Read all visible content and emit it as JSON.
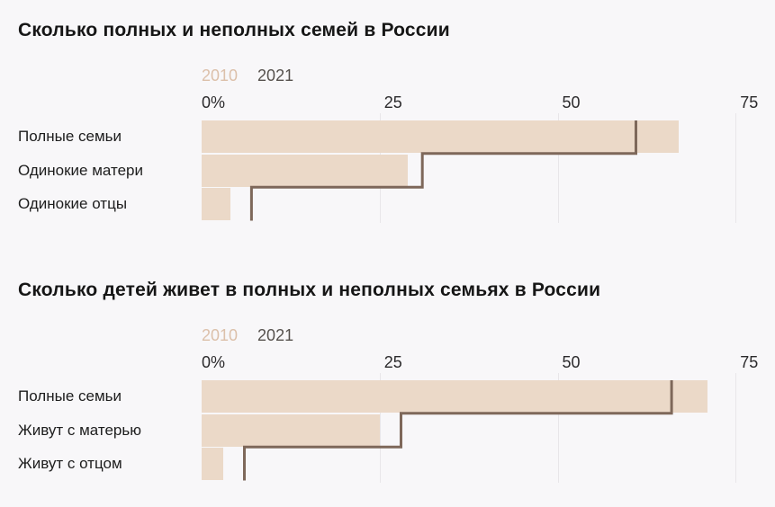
{
  "page": {
    "background_color": "#f8f7f9"
  },
  "colors": {
    "grid": "#e8e6e9",
    "title_text": "#161616",
    "category_text": "#1d1d1d",
    "axis_text": "#2b2a2c"
  },
  "chart_data": [
    {
      "type": "bar",
      "orientation": "horizontal",
      "title": "Сколько полных и неполных семей в России",
      "categories": [
        "Полные семьи",
        "Одинокие матери",
        "Одинокие отцы"
      ],
      "series": [
        {
          "name": "2010",
          "style": "filled-bar",
          "color": "#ebd9c8",
          "legend_color": "#dcc0aa",
          "values": [
            67,
            29,
            4
          ]
        },
        {
          "name": "2021",
          "style": "step-line",
          "color": "#7e685a",
          "legend_color": "#56514d",
          "values": [
            61,
            31,
            7
          ]
        }
      ],
      "unit": "%",
      "xlim": [
        0,
        78
      ],
      "ticks": [
        {
          "value": 0,
          "label": "0%"
        },
        {
          "value": 25,
          "label": "25"
        },
        {
          "value": 50,
          "label": "50"
        },
        {
          "value": 75,
          "label": "75"
        }
      ],
      "grid": true,
      "legend_position": "top"
    },
    {
      "type": "bar",
      "orientation": "horizontal",
      "title": "Сколько детей живет в полных и неполных семьях в России",
      "categories": [
        "Полные семьи",
        "Живут с матерью",
        "Живут с отцом"
      ],
      "series": [
        {
          "name": "2010",
          "style": "filled-bar",
          "color": "#ebd9c8",
          "legend_color": "#dcc0aa",
          "values": [
            71,
            25,
            3
          ]
        },
        {
          "name": "2021",
          "style": "step-line",
          "color": "#7e685a",
          "legend_color": "#56514d",
          "values": [
            66,
            28,
            6
          ]
        }
      ],
      "unit": "%",
      "xlim": [
        0,
        78
      ],
      "ticks": [
        {
          "value": 0,
          "label": "0%"
        },
        {
          "value": 25,
          "label": "25"
        },
        {
          "value": 50,
          "label": "50"
        },
        {
          "value": 75,
          "label": "75"
        }
      ],
      "grid": true,
      "legend_position": "top"
    }
  ]
}
